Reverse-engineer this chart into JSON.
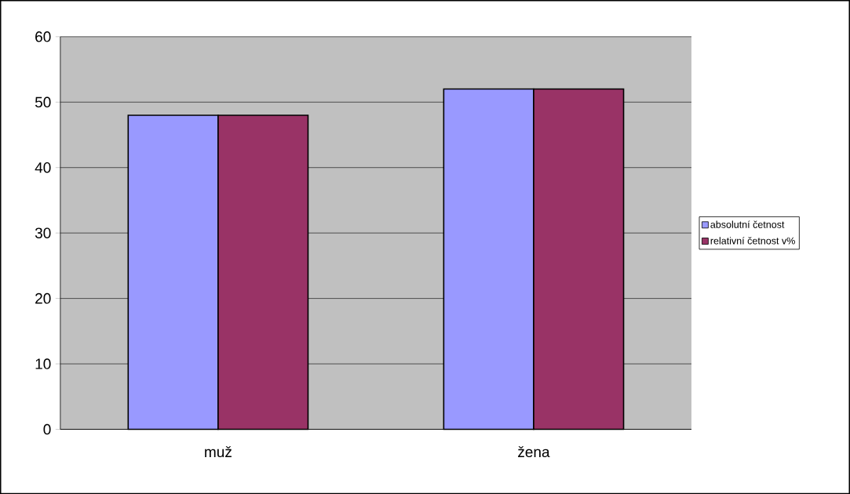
{
  "chart_data": {
    "type": "bar",
    "categories": [
      "muž",
      "žena"
    ],
    "series": [
      {
        "name": "absolutní četnost",
        "color": "#9999ff",
        "values": [
          48,
          52
        ]
      },
      {
        "name": "relativní četnost v%",
        "color": "#993366",
        "values": [
          48,
          52
        ]
      }
    ],
    "ylim": [
      0,
      60
    ],
    "yticks": [
      0,
      10,
      20,
      30,
      40,
      50,
      60
    ],
    "grid": "y",
    "legend": "right"
  }
}
